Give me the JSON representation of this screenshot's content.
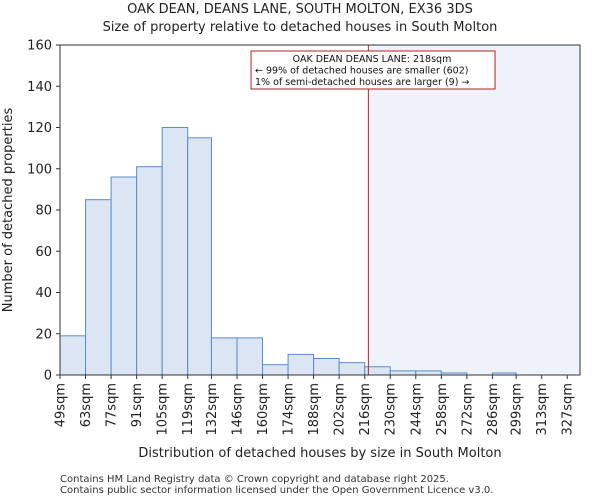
{
  "title_line1": "OAK DEAN, DEANS LANE, SOUTH MOLTON, EX36 3DS",
  "title_line2": "Size of property relative to detached houses in South Molton",
  "footer_line1": "Contains HM Land Registry data © Crown copyright and database right 2025.",
  "footer_line2": "Contains public sector information licensed under the Open Government Licence v3.0.",
  "colors": {
    "bar_fill": "#dbe5f3",
    "bar_stroke": "#5b8cc9",
    "marker": "#b22222",
    "shade": "#eef2fa"
  },
  "chart_data": {
    "type": "bar",
    "title": "Size of property relative to detached houses in South Molton",
    "xlabel": "Distribution of detached houses by size in South Molton",
    "ylabel": "Number of detached properties",
    "ylim": [
      0,
      160
    ],
    "yticks": [
      0,
      20,
      40,
      60,
      80,
      100,
      120,
      140,
      160
    ],
    "xlim": [
      49,
      334
    ],
    "bin_edges": [
      49,
      63,
      77,
      91,
      105,
      119,
      132,
      146,
      160,
      174,
      188,
      202,
      216,
      230,
      244,
      258,
      272,
      286,
      299,
      313,
      327,
      334
    ],
    "tick_labels": [
      "49sqm",
      "63sqm",
      "77sqm",
      "91sqm",
      "105sqm",
      "119sqm",
      "132sqm",
      "146sqm",
      "160sqm",
      "174sqm",
      "188sqm",
      "202sqm",
      "216sqm",
      "230sqm",
      "244sqm",
      "258sqm",
      "272sqm",
      "286sqm",
      "299sqm",
      "313sqm",
      "327sqm"
    ],
    "values": [
      19,
      85,
      96,
      101,
      120,
      115,
      18,
      18,
      5,
      10,
      8,
      6,
      4,
      2,
      2,
      1,
      0,
      1,
      0,
      0,
      0
    ],
    "marker_value": 218,
    "annotation": {
      "line1": "OAK DEAN DEANS LANE: 218sqm",
      "line2": "← 99% of detached houses are smaller (602)",
      "line3": "1% of semi-detached houses are larger (9) →"
    }
  }
}
